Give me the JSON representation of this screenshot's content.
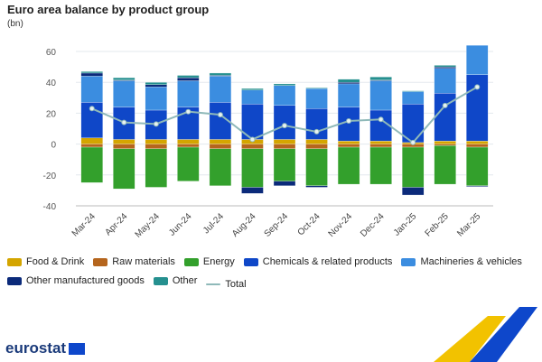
{
  "title": "Euro area balance by product group",
  "unit": "(bn)",
  "logo": "eurostat",
  "chart_data": {
    "type": "bar",
    "stacked": true,
    "categories": [
      "Mar-24",
      "Apr-24",
      "May-24",
      "Jun-24",
      "Jul-24",
      "Aug-24",
      "Sep-24",
      "Oct-24",
      "Nov-24",
      "Dec-24",
      "Jan-25",
      "Feb-25",
      "Mar-25"
    ],
    "ylim": [
      -40,
      80
    ],
    "yticks": [
      -40,
      -20,
      0,
      20,
      40,
      60,
      80
    ],
    "series": [
      {
        "name": "Food & Drink",
        "color": "#d4a500",
        "values": [
          4,
          3,
          3,
          3,
          3,
          3,
          3,
          3,
          2,
          2,
          1,
          2,
          2
        ]
      },
      {
        "name": "Raw materials",
        "color": "#b5651d",
        "values": [
          -2,
          -3,
          -3,
          -2,
          -3,
          -3,
          -3,
          -3,
          -2,
          -2,
          -2,
          -1,
          -2
        ]
      },
      {
        "name": "Energy",
        "color": "#33a02c",
        "values": [
          -23,
          -26,
          -25,
          -22,
          -24,
          -25,
          -21,
          -24,
          -24,
          -24,
          -26,
          -25,
          -25
        ]
      },
      {
        "name": "Chemicals & related products",
        "color": "#0f47c8",
        "values": [
          23,
          21,
          19,
          21,
          24,
          23,
          22,
          20,
          22,
          20,
          25,
          31,
          43
        ]
      },
      {
        "name": "Machineries & vehicles",
        "color": "#3b8de0",
        "values": [
          17,
          17,
          15,
          17,
          17,
          9,
          13,
          13,
          15,
          19,
          8,
          16,
          19
        ]
      },
      {
        "name": "Other manufactured goods",
        "color": "#0b2a7a",
        "values": [
          2,
          0.5,
          1.5,
          2,
          0.5,
          -4,
          -3,
          -1,
          1,
          0.5,
          -5,
          1,
          -0.5
        ]
      },
      {
        "name": "Other",
        "color": "#25908f",
        "values": [
          1,
          1.5,
          1.5,
          1.5,
          1.5,
          1,
          1,
          0.5,
          2,
          2,
          0.5,
          1,
          0
        ]
      }
    ],
    "line": {
      "name": "Total",
      "color": "#8fb9b9",
      "values": [
        23,
        14,
        13,
        21,
        19,
        3,
        12,
        8,
        15,
        16,
        1,
        25,
        37
      ]
    },
    "legend": "bottom"
  }
}
